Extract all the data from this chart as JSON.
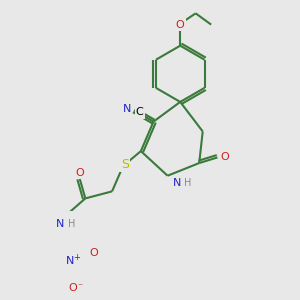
{
  "bg_color": "#e8e8e8",
  "bond_color": "#3a7a3a",
  "bond_width": 1.5,
  "atom_colors": {
    "N": "#2222cc",
    "O": "#cc2222",
    "S": "#bbbb00",
    "H": "#888888",
    "C": "#000000"
  },
  "fig_size": [
    3.0,
    3.0
  ],
  "dpi": 100,
  "xlim": [
    0,
    300
  ],
  "ylim": [
    0,
    300
  ]
}
